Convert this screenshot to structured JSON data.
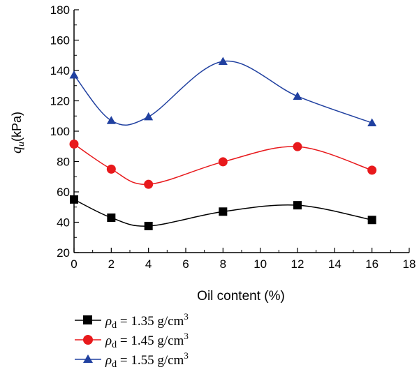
{
  "chart_data": {
    "type": "line",
    "title": "",
    "xlabel": "Oil content (%)",
    "ylabel": {
      "symbol": "q",
      "subscript": "u",
      "unit": "(kPa)"
    },
    "xlim": [
      0,
      18
    ],
    "ylim": [
      20,
      180
    ],
    "xticks": [
      0,
      2,
      4,
      6,
      8,
      10,
      12,
      14,
      16,
      18
    ],
    "yticks": [
      20,
      40,
      60,
      80,
      100,
      120,
      140,
      160,
      180
    ],
    "x": [
      0,
      2,
      4,
      8,
      12,
      16
    ],
    "grid": false,
    "legend_position": "bottom-left, below axes",
    "series": [
      {
        "name": "1.35 g/cm3",
        "values": [
          55,
          43,
          37.5,
          47,
          51.2,
          41.5
        ],
        "color": "#000000",
        "marker": "square"
      },
      {
        "name": "1.45 g/cm3",
        "values": [
          91.5,
          75,
          65,
          79.8,
          89.8,
          74.3
        ],
        "color": "#e8191c",
        "marker": "circle"
      },
      {
        "name": "1.55 g/cm3",
        "values": [
          137,
          107,
          109.5,
          146,
          123,
          105.5
        ],
        "color": "#2040a0",
        "marker": "triangle"
      }
    ],
    "legend": [
      {
        "symbol": "ρ",
        "subscript": "d",
        "value": " = 1.35 g/cm",
        "sup": "3"
      },
      {
        "symbol": "ρ",
        "subscript": "d",
        "value": " = 1.45 g/cm",
        "sup": "3"
      },
      {
        "symbol": "ρ",
        "subscript": "d",
        "value": " = 1.55 g/cm",
        "sup": "3"
      }
    ]
  }
}
